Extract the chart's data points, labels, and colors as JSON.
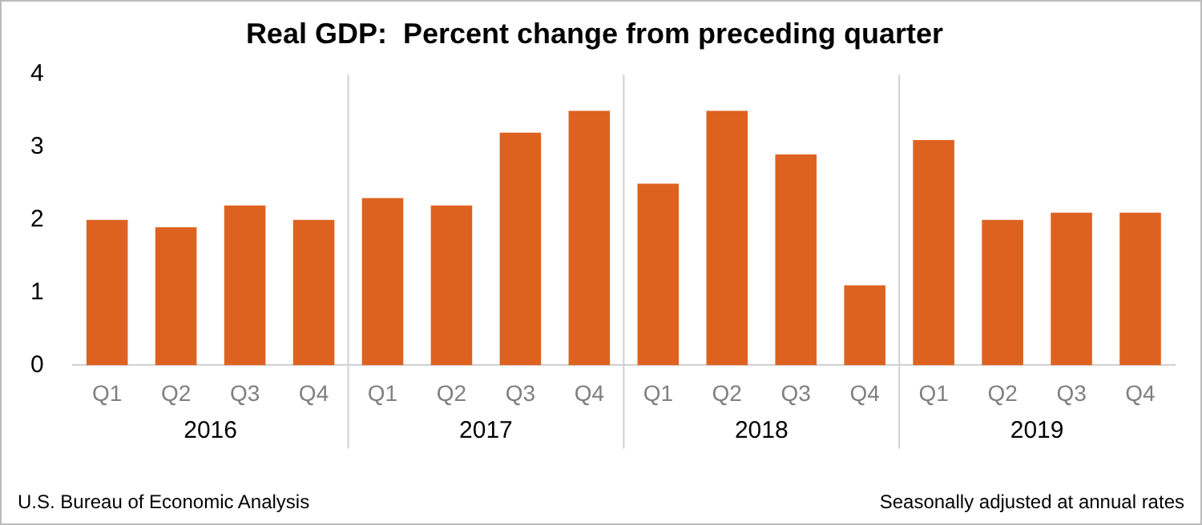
{
  "chart_data": {
    "type": "bar",
    "title": "Real GDP:  Percent change from preceding quarter",
    "categories": [
      "Q1",
      "Q2",
      "Q3",
      "Q4",
      "Q1",
      "Q2",
      "Q3",
      "Q4",
      "Q1",
      "Q2",
      "Q3",
      "Q4",
      "Q1",
      "Q2",
      "Q3",
      "Q4"
    ],
    "values": [
      2.0,
      1.9,
      2.2,
      2.0,
      2.3,
      2.2,
      3.2,
      3.5,
      2.5,
      3.5,
      2.9,
      1.1,
      3.1,
      2.0,
      2.1,
      2.1
    ],
    "color": "#dd6220",
    "ylim": [
      0,
      4
    ],
    "yticks": [
      0,
      1,
      2,
      3,
      4
    ],
    "grid": false,
    "legend": false,
    "annotations": [
      "2016",
      "2017",
      "2018",
      "2019",
      "U.S. Bureau of Economic Analysis",
      "Seasonally adjusted at annual rates"
    ]
  }
}
